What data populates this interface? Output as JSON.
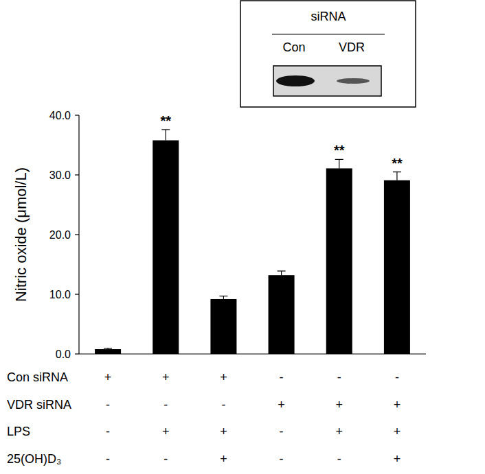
{
  "chart_data": {
    "type": "bar",
    "y_label": "Nitric oxide (μmol/L)",
    "categories": [
      null,
      null,
      null,
      null,
      null,
      null
    ],
    "values": [
      0.8,
      35.8,
      9.2,
      13.2,
      31.1,
      29.1
    ],
    "errors": [
      0.15,
      1.8,
      0.5,
      0.7,
      1.5,
      1.4
    ],
    "color": "#000000",
    "ylim": [
      0,
      40
    ],
    "yticks": [
      {
        "value": 0,
        "label": "0.0"
      },
      {
        "value": 10,
        "label": "10.0"
      },
      {
        "value": 20,
        "label": "20.0"
      },
      {
        "value": 30,
        "label": "30.0"
      },
      {
        "value": 40,
        "label": "40.0"
      }
    ],
    "grid": false,
    "annotations": [
      {
        "index": 1,
        "text": "**"
      },
      {
        "index": 4,
        "text": "**"
      },
      {
        "index": 5,
        "text": "**"
      }
    ],
    "conditions": [
      {
        "label": "Con siRNA",
        "marks": [
          "+",
          "+",
          "+",
          "-",
          "-",
          "-"
        ]
      },
      {
        "label": "VDR siRNA",
        "marks": [
          "-",
          "-",
          "-",
          "+",
          "+",
          "+"
        ]
      },
      {
        "label": "LPS",
        "marks": [
          "-",
          "+",
          "+",
          "-",
          "+",
          "+"
        ]
      },
      {
        "label": "25(OH)D₃",
        "marks": [
          "-",
          "-",
          "+",
          "-",
          "-",
          "+"
        ]
      }
    ],
    "inset": {
      "title": "siRNA",
      "lanes": [
        "Con",
        "VDR"
      ]
    }
  }
}
